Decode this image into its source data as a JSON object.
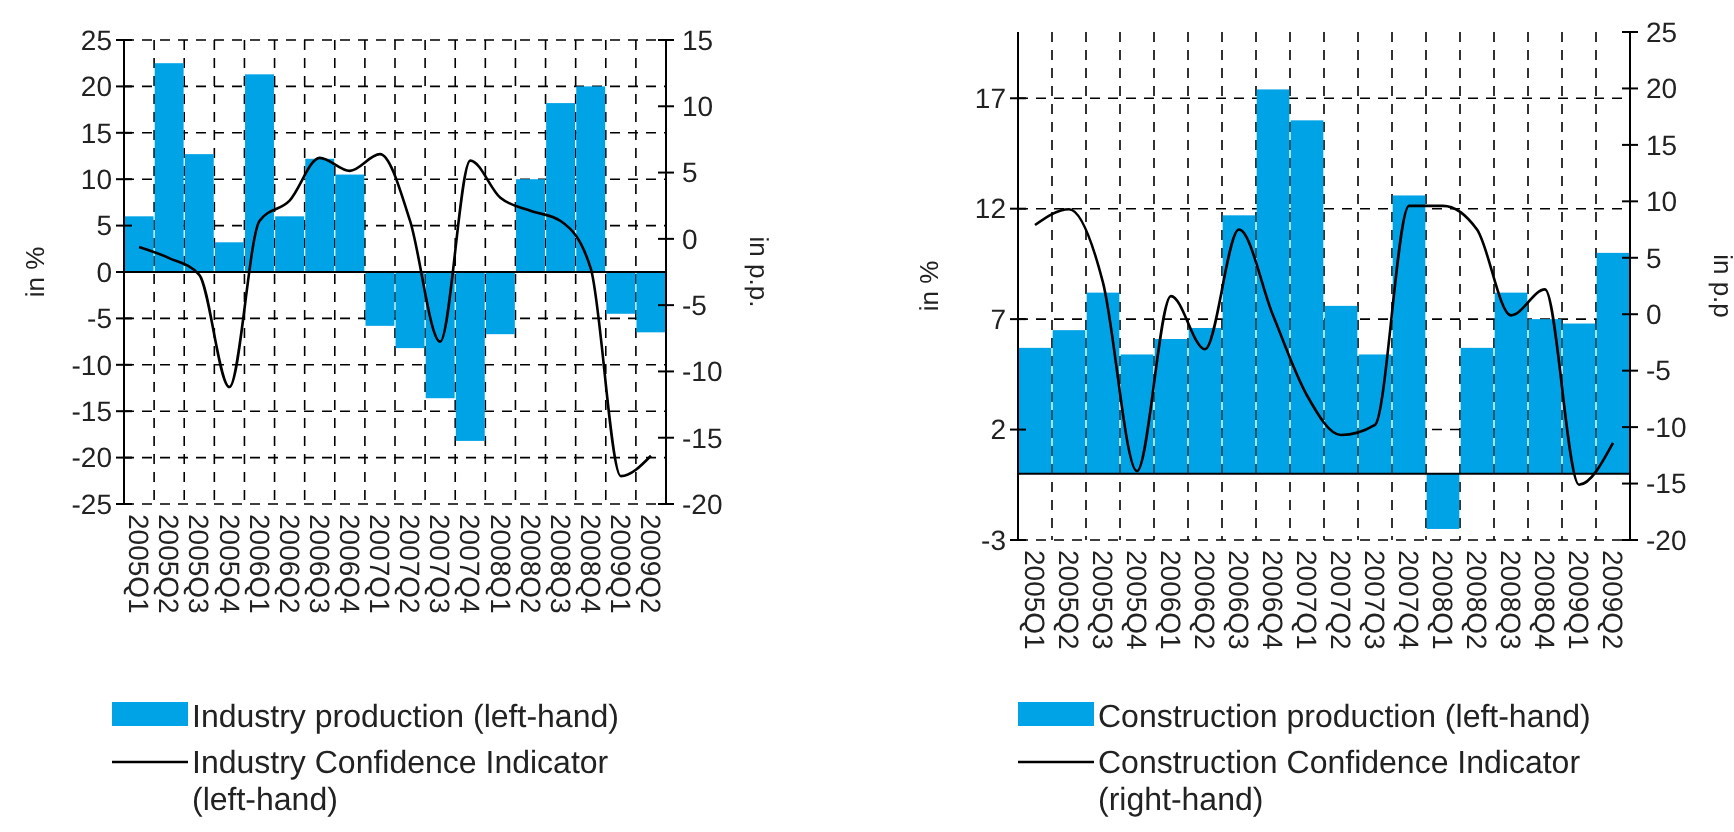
{
  "chart_data": [
    {
      "type": "bar",
      "categories": [
        "2005Q1",
        "2005Q2",
        "2005Q3",
        "2005Q4",
        "2006Q1",
        "2006Q2",
        "2006Q3",
        "2006Q4",
        "2007Q1",
        "2007Q2",
        "2007Q3",
        "2007Q4",
        "2008Q1",
        "2008Q2",
        "2008Q3",
        "2008Q4",
        "2009Q1",
        "2009Q2"
      ],
      "series": [
        {
          "name": "Industry production (left-hand)",
          "color": "#00a3e6",
          "values": [
            6,
            22.5,
            12.7,
            3.2,
            21.3,
            6,
            12.2,
            10.5,
            -5.8,
            -8.2,
            -13.6,
            -18.2,
            -6.7,
            10,
            18.2,
            20,
            -4.5,
            -6.5
          ]
        },
        {
          "name": "Industry Confidence Indicator (left-hand)",
          "type": "line",
          "color": "#000000",
          "values": [
            2.7,
            1.5,
            -0.3,
            -12.4,
            5.5,
            7.7,
            12.3,
            10.9,
            12.7,
            5.5,
            -7.5,
            12,
            8,
            6.6,
            5.5,
            0.4,
            -22,
            -19.8
          ]
        }
      ],
      "ylim": [
        -25,
        25
      ],
      "yticks": [
        -25,
        -20,
        -15,
        -10,
        -5,
        0,
        5,
        10,
        15,
        20,
        25
      ],
      "y2lim": [
        -20,
        15
      ],
      "y2ticks": [
        -20,
        -15,
        -10,
        -5,
        0,
        5,
        10,
        15
      ],
      "ylabel": "in %",
      "y2label": "in p.p.",
      "grid": true,
      "legend": "bottom"
    },
    {
      "type": "bar",
      "categories": [
        "2005Q1",
        "2005Q2",
        "2005Q3",
        "2005Q4",
        "2006Q1",
        "2006Q2",
        "2006Q3",
        "2006Q4",
        "2007Q1",
        "2007Q2",
        "2007Q3",
        "2007Q4",
        "2008Q1",
        "2008Q2",
        "2008Q3",
        "2008Q4",
        "2009Q1",
        "2009Q2"
      ],
      "series": [
        {
          "name": "Construction production (left-hand)",
          "color": "#00a3e6",
          "values": [
            5.7,
            6.5,
            8.2,
            5.4,
            6.1,
            6.6,
            11.7,
            17.4,
            16,
            7.6,
            5.4,
            12.6,
            -2.5,
            5.7,
            8.2,
            7,
            6.8,
            10
          ]
        },
        {
          "name": "Construction Confidence Indicator (right-hand)",
          "type": "line",
          "axis": "y2",
          "color": "#000000",
          "values": [
            7.9,
            9.3,
            2.8,
            -13.9,
            1.6,
            -3.1,
            7.5,
            -0.1,
            -7.2,
            -10.7,
            -9.8,
            9.6,
            9.6,
            7.5,
            -0.1,
            2.2,
            -15.1,
            -11.4
          ]
        }
      ],
      "ylim": [
        -3,
        20
      ],
      "yticks": [
        -3,
        2,
        7,
        12,
        17
      ],
      "y2lim": [
        -20,
        25
      ],
      "y2ticks": [
        -20,
        -15,
        -10,
        -5,
        0,
        5,
        10,
        15,
        20,
        25
      ],
      "ylabel": "in %",
      "y2label": "in p.p",
      "grid": true,
      "legend": "bottom"
    }
  ]
}
